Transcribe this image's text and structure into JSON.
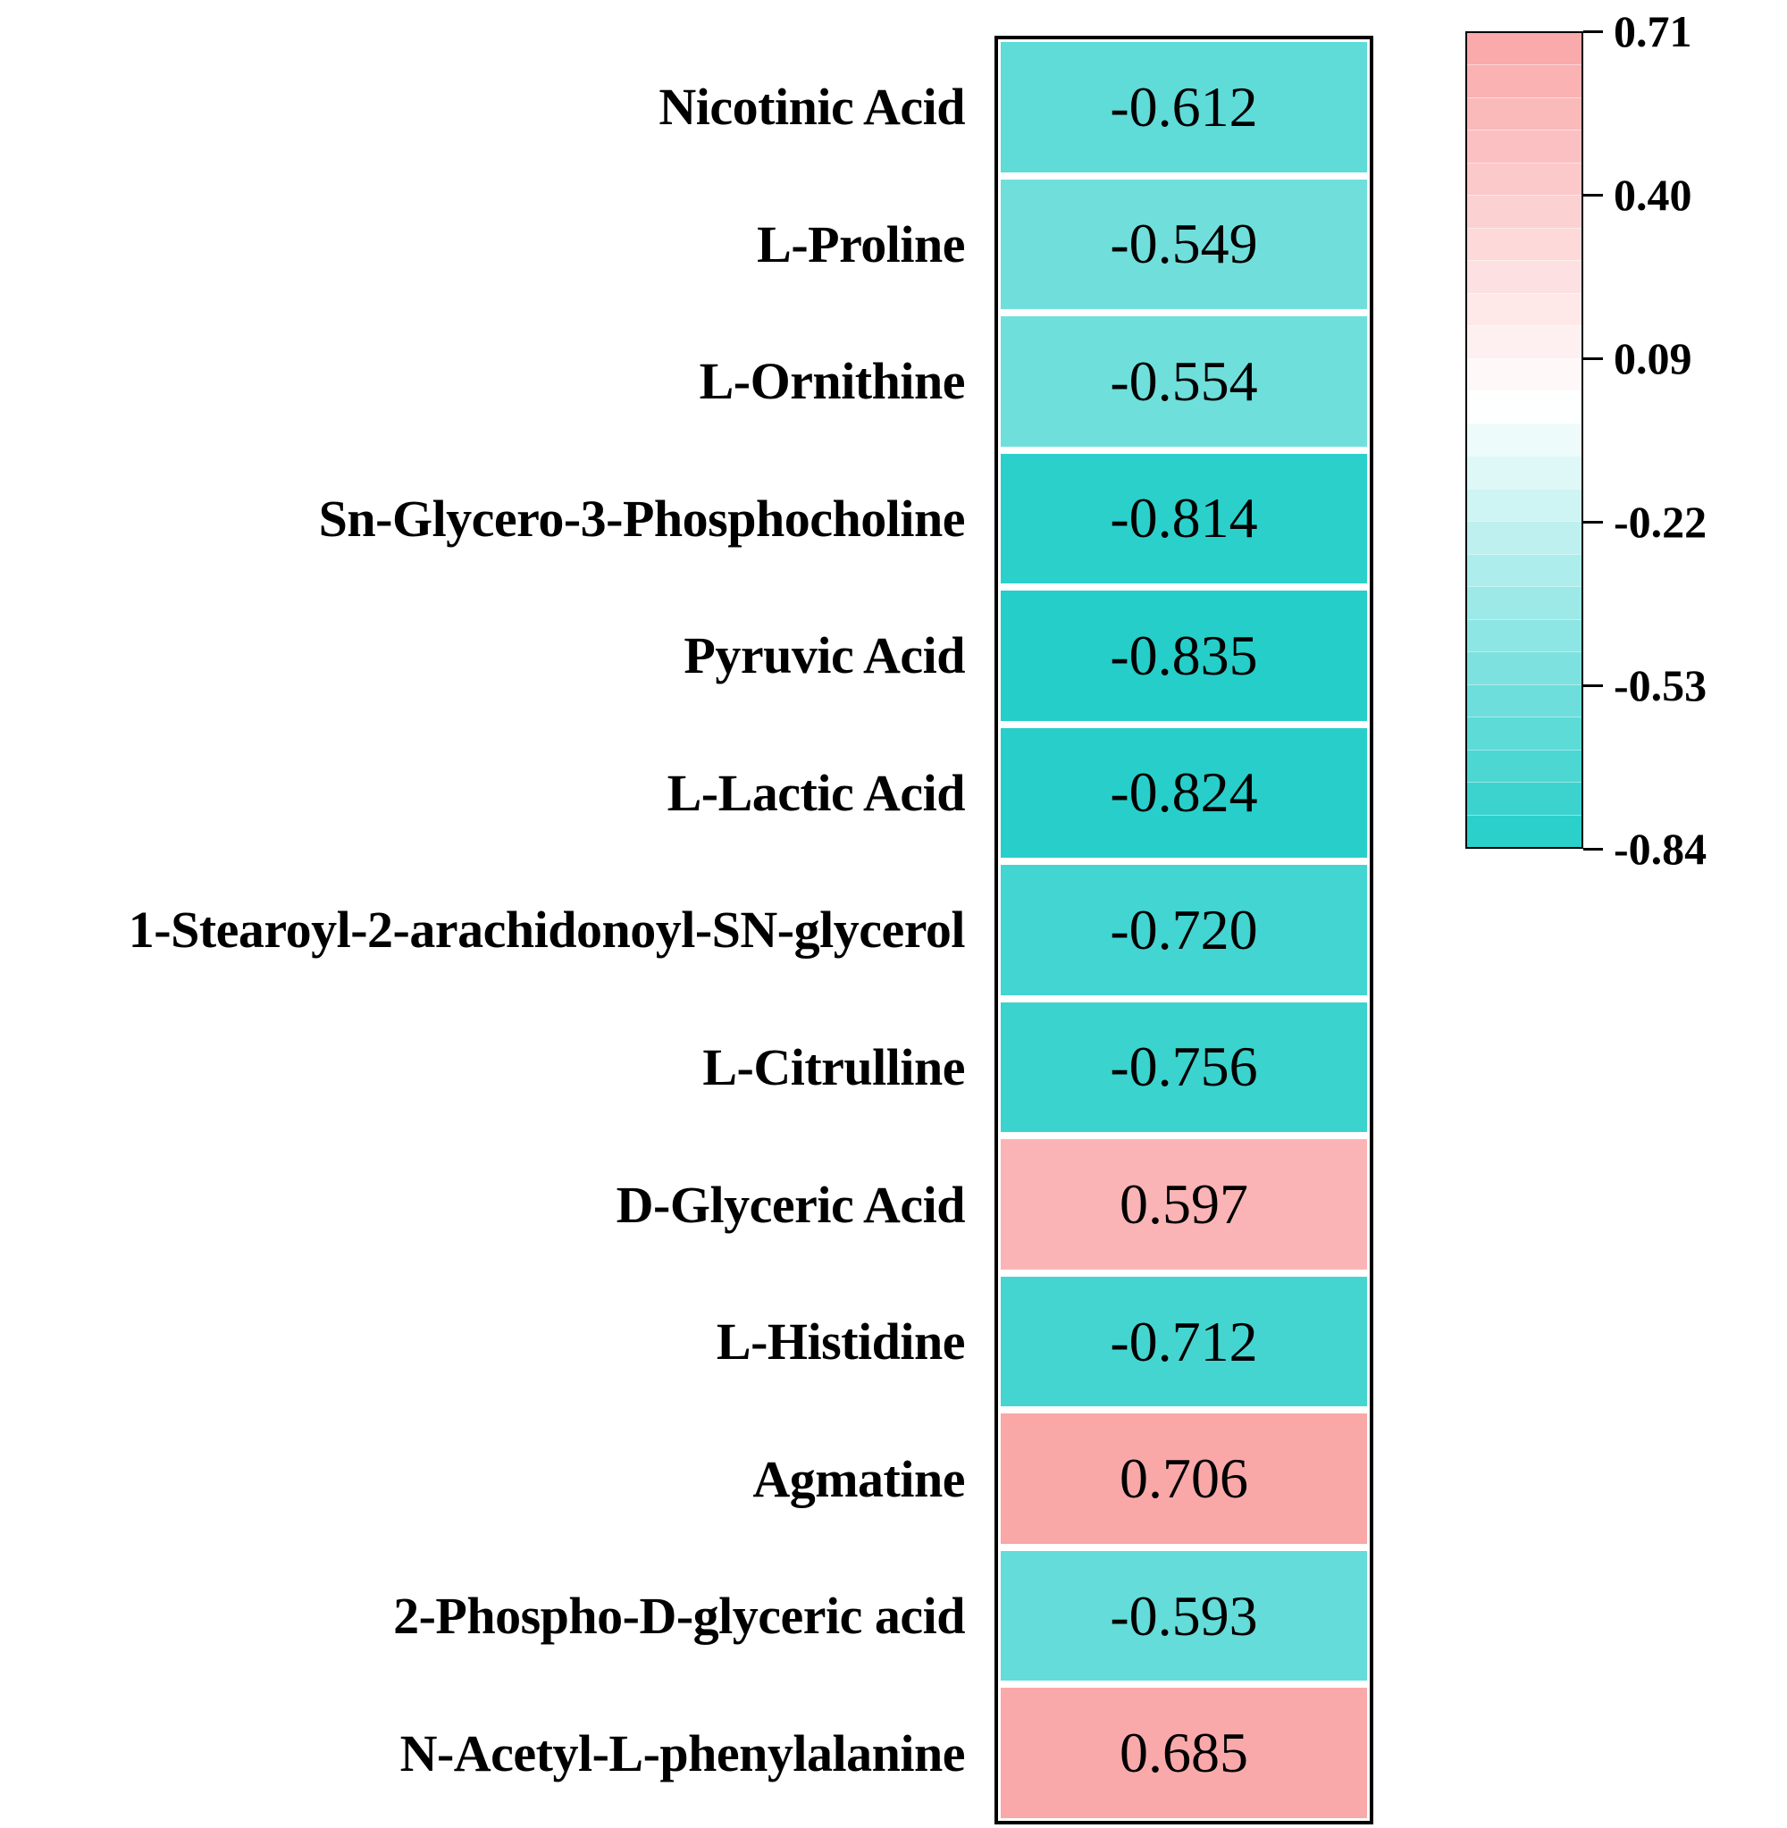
{
  "chart_data": {
    "type": "heatmap",
    "title": "",
    "orientation": "single-column",
    "rows": [
      {
        "label": "Nicotinic Acid",
        "value": -0.612,
        "display": "-0.612"
      },
      {
        "label": "L-Proline",
        "value": -0.549,
        "display": "-0.549"
      },
      {
        "label": "L-Ornithine",
        "value": -0.554,
        "display": "-0.554"
      },
      {
        "label": "Sn-Glycero-3-Phosphocholine",
        "value": -0.814,
        "display": "-0.814"
      },
      {
        "label": "Pyruvic Acid",
        "value": -0.835,
        "display": "-0.835"
      },
      {
        "label": "L-Lactic Acid",
        "value": -0.824,
        "display": "-0.824"
      },
      {
        "label": "1-Stearoyl-2-arachidonoyl-SN-glycerol",
        "value": -0.72,
        "display": "-0.720"
      },
      {
        "label": "L-Citrulline",
        "value": -0.756,
        "display": "-0.756"
      },
      {
        "label": "D-Glyceric Acid",
        "value": 0.597,
        "display": "0.597"
      },
      {
        "label": "L-Histidine",
        "value": -0.712,
        "display": "-0.712"
      },
      {
        "label": "Agmatine",
        "value": 0.706,
        "display": "0.706"
      },
      {
        "label": "2-Phospho-D-glyceric acid",
        "value": -0.593,
        "display": "-0.593"
      },
      {
        "label": "N-Acetyl-L-phenylalanine",
        "value": 0.685,
        "display": "0.685"
      }
    ],
    "colorbar": {
      "tick_labels": [
        "0.71",
        "0.40",
        "0.09",
        "-0.22",
        "-0.53",
        "-0.84"
      ],
      "tick_values": [
        0.71,
        0.4,
        0.09,
        -0.22,
        -0.53,
        -0.84
      ],
      "vmax_shown": 0.71,
      "vmin_shown": -0.84,
      "bands": 25
    },
    "colormap": {
      "center_value": 0,
      "symmetric_limit": 0.84,
      "center_color": "#FFFFFF",
      "positive_end_color": "#F99697",
      "negative_end_color": "#24CEC9"
    },
    "style_colors": {
      "heatmap_border": "#000000",
      "row_gap": "#FFFFFF",
      "value_text": "#000000",
      "label_text": "#000000"
    },
    "legend_position": "right",
    "grid": false
  }
}
